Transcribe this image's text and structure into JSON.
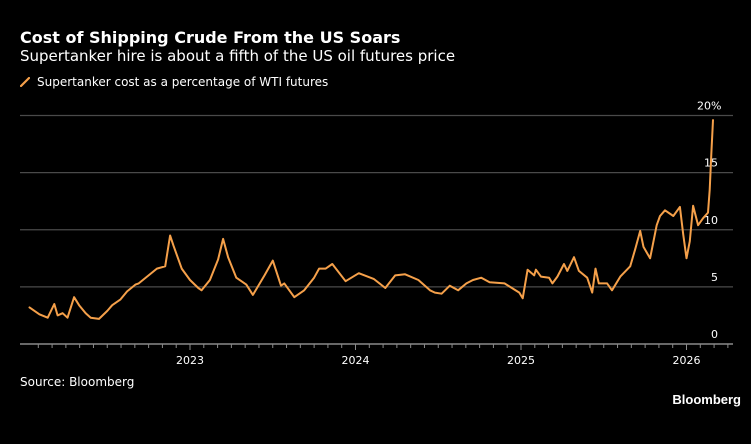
{
  "header": {
    "title": "Cost of Shipping Crude From the US Soars",
    "subtitle": "Supertanker hire is about a fifth of the US oil futures price"
  },
  "legend": {
    "items": [
      {
        "label": "Supertanker cost as a percentage of WTI futures",
        "color": "#f5a04a",
        "icon": "line-swatch-icon"
      }
    ]
  },
  "footer": {
    "source": "Source: Bloomberg",
    "brand": "Bloomberg"
  },
  "chart_data": {
    "type": "line",
    "title": "Cost of Shipping Crude From the US Soars",
    "subtitle": "Supertanker hire is about a fifth of the US oil futures price",
    "xlabel": "",
    "ylabel": "",
    "x_range": [
      2022.0,
      2026.3
    ],
    "ylim": [
      0,
      20
    ],
    "y_ticks": [
      0,
      5,
      10,
      15,
      20
    ],
    "y_tick_labels": [
      "0",
      "5",
      "10",
      "15",
      "20%"
    ],
    "x_ticks": [
      2023,
      2024,
      2025,
      2026
    ],
    "x_tick_labels": [
      "2023",
      "2024",
      "2025",
      "2026"
    ],
    "grid": true,
    "y_axis_position": "right",
    "legend_position": "top-left",
    "series": [
      {
        "name": "Supertanker cost as a percentage of WTI futures",
        "color": "#f5a04a",
        "x": [
          2022.03,
          2022.09,
          2022.14,
          2022.18,
          2022.2,
          2022.23,
          2022.26,
          2022.3,
          2022.33,
          2022.37,
          2022.4,
          2022.45,
          2022.5,
          2022.53,
          2022.58,
          2022.62,
          2022.67,
          2022.69,
          2022.75,
          2022.8,
          2022.85,
          2022.88,
          2022.9,
          2022.95,
          2023.0,
          2023.05,
          2023.07,
          2023.12,
          2023.17,
          2023.2,
          2023.23,
          2023.28,
          2023.34,
          2023.38,
          2023.45,
          2023.5,
          2023.55,
          2023.57,
          2023.63,
          2023.69,
          2023.75,
          2023.78,
          2023.82,
          2023.86,
          2023.94,
          2024.02,
          2024.11,
          2024.18,
          2024.24,
          2024.3,
          2024.38,
          2024.45,
          2024.48,
          2024.52,
          2024.57,
          2024.62,
          2024.67,
          2024.71,
          2024.76,
          2024.81,
          2024.9,
          2024.99,
          2025.01,
          2025.04,
          2025.08,
          2025.09,
          2025.12,
          2025.17,
          2025.19,
          2025.22,
          2025.26,
          2025.28,
          2025.32,
          2025.35,
          2025.4,
          2025.43,
          2025.45,
          2025.47,
          2025.52,
          2025.55,
          2025.6,
          2025.66,
          2025.69,
          2025.72,
          2025.74,
          2025.78,
          2025.82,
          2025.84,
          2025.87,
          2025.92,
          2025.96,
          2025.98,
          2026.0,
          2026.02,
          2026.04,
          2026.07,
          2026.1,
          2026.13,
          2026.14,
          2026.15,
          2026.16
        ],
        "values": [
          3.2,
          2.6,
          2.3,
          3.5,
          2.5,
          2.7,
          2.3,
          4.1,
          3.4,
          2.7,
          2.3,
          2.2,
          2.9,
          3.4,
          3.9,
          4.6,
          5.2,
          5.3,
          6.0,
          6.6,
          6.8,
          9.5,
          8.6,
          6.6,
          5.6,
          4.9,
          4.7,
          5.6,
          7.4,
          9.2,
          7.6,
          5.8,
          5.2,
          4.3,
          6.0,
          7.3,
          5.1,
          5.3,
          4.1,
          4.7,
          5.8,
          6.6,
          6.6,
          7.0,
          5.5,
          6.2,
          5.7,
          4.9,
          6.0,
          6.1,
          5.6,
          4.7,
          4.5,
          4.4,
          5.1,
          4.7,
          5.3,
          5.6,
          5.8,
          5.4,
          5.3,
          4.5,
          4.0,
          6.5,
          6.0,
          6.5,
          5.9,
          5.8,
          5.3,
          5.9,
          7.0,
          6.4,
          7.6,
          6.4,
          5.8,
          4.5,
          6.6,
          5.3,
          5.3,
          4.7,
          5.9,
          6.8,
          8.3,
          9.9,
          8.5,
          7.5,
          10.4,
          11.2,
          11.7,
          11.2,
          12.0,
          9.6,
          7.5,
          9.0,
          12.1,
          10.4,
          11.0,
          11.5,
          13.5,
          16.6,
          19.6
        ]
      }
    ]
  }
}
